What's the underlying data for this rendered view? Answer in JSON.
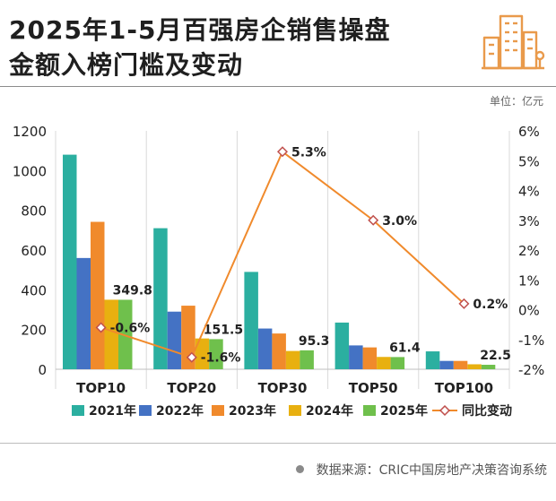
{
  "header": {
    "title_line1": "2025年1-5月百强房企销售操盘",
    "title_line2": "金额入榜门槛及变动",
    "unit": "单位：亿元",
    "logo_icon": "city-buildings-icon"
  },
  "footer": {
    "source": "数据来源：CRIC中国房地产决策咨询系统"
  },
  "colors": {
    "2021年": "#2bafa0",
    "2022年": "#4472c4",
    "2023年": "#f08a2c",
    "2024年": "#e8b010",
    "2025年": "#6fc04c",
    "line": "#f08a2c",
    "marker": "#c0504d"
  },
  "chart_data": {
    "type": "bar",
    "categories": [
      "TOP10",
      "TOP20",
      "TOP30",
      "TOP50",
      "TOP100"
    ],
    "series": [
      {
        "name": "2021年",
        "values": [
          1080,
          710,
          490,
          235,
          90
        ]
      },
      {
        "name": "2022年",
        "values": [
          560,
          290,
          205,
          120,
          42
        ]
      },
      {
        "name": "2023年",
        "values": [
          742,
          320,
          180,
          110,
          42
        ]
      },
      {
        "name": "2024年",
        "values": [
          350,
          155,
          92,
          62,
          25
        ]
      },
      {
        "name": "2025年",
        "values": [
          349.8,
          151.5,
          95.3,
          61.4,
          22.5
        ]
      }
    ],
    "bar_labels": [
      "349.8",
      "151.5",
      "95.3",
      "61.4",
      "22.5"
    ],
    "line_series": {
      "name": "同比变动",
      "values": [
        -0.6,
        -1.6,
        5.3,
        3.0,
        0.2
      ]
    },
    "line_labels": [
      "-0.6%",
      "-1.6%",
      "5.3%",
      "3.0%",
      "0.2%"
    ],
    "ylim_left": [
      0,
      1200
    ],
    "yticks_left": [
      "0",
      "200",
      "400",
      "600",
      "800",
      "1000",
      "1200"
    ],
    "ylim_right": [
      -2,
      6
    ],
    "yticks_right": [
      "-2%",
      "-1%",
      "0%",
      "1%",
      "2%",
      "3%",
      "4%",
      "5%",
      "6%"
    ],
    "legend": [
      "2021年",
      "2022年",
      "2023年",
      "2024年",
      "2025年",
      "同比变动"
    ],
    "legend_position": "bottom"
  }
}
